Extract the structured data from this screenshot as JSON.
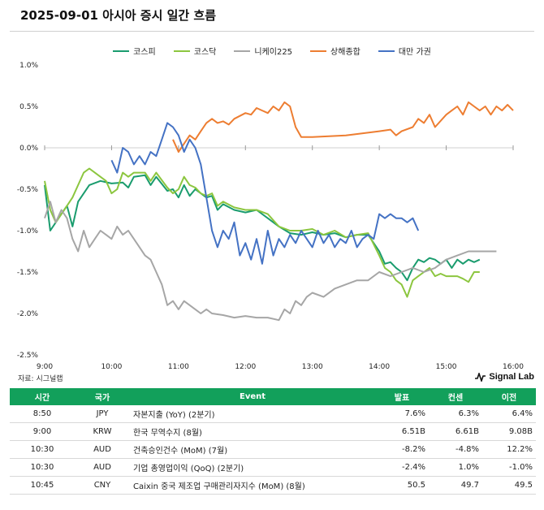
{
  "title": "2025-09-01 아시아 증시 일간 흐름",
  "source": "자료: 시그널랩",
  "brand": "Signal Lab",
  "chart_data": {
    "type": "line",
    "ylim": [
      -2.5,
      1.0
    ],
    "xlim": [
      "9:00",
      "16:00"
    ],
    "yticks": [
      "1.0%",
      "0.5%",
      "0.0%",
      "-0.5%",
      "-1.0%",
      "-1.5%",
      "-2.0%",
      "-2.5%"
    ],
    "ytick_values": [
      1.0,
      0.5,
      0.0,
      -0.5,
      -1.0,
      -1.5,
      -2.0,
      -2.5
    ],
    "xticks": [
      "9:00",
      "10:00",
      "11:00",
      "12:00",
      "13:00",
      "14:00",
      "15:00",
      "16:00"
    ],
    "legend_position": "top",
    "series": [
      {
        "name": "코스피",
        "color": "#1a9c6e",
        "points": [
          [
            "9:00",
            -0.45
          ],
          [
            "9:05",
            -1.0
          ],
          [
            "9:10",
            -0.9
          ],
          [
            "9:15",
            -0.8
          ],
          [
            "9:20",
            -0.7
          ],
          [
            "9:25",
            -0.95
          ],
          [
            "9:30",
            -0.65
          ],
          [
            "9:40",
            -0.45
          ],
          [
            "9:50",
            -0.4
          ],
          [
            "10:00",
            -0.43
          ],
          [
            "10:10",
            -0.42
          ],
          [
            "10:15",
            -0.48
          ],
          [
            "10:20",
            -0.35
          ],
          [
            "10:30",
            -0.33
          ],
          [
            "10:35",
            -0.45
          ],
          [
            "10:40",
            -0.35
          ],
          [
            "10:50",
            -0.52
          ],
          [
            "10:55",
            -0.5
          ],
          [
            "11:00",
            -0.6
          ],
          [
            "11:05",
            -0.45
          ],
          [
            "11:10",
            -0.58
          ],
          [
            "11:15",
            -0.5
          ],
          [
            "11:20",
            -0.55
          ],
          [
            "11:25",
            -0.6
          ],
          [
            "11:30",
            -0.58
          ],
          [
            "11:35",
            -0.75
          ],
          [
            "11:40",
            -0.68
          ],
          [
            "11:50",
            -0.75
          ],
          [
            "12:00",
            -0.78
          ],
          [
            "12:10",
            -0.75
          ],
          [
            "12:20",
            -0.85
          ],
          [
            "12:30",
            -0.95
          ],
          [
            "12:40",
            -1.03
          ],
          [
            "12:50",
            -1.05
          ],
          [
            "13:00",
            -1.02
          ],
          [
            "13:10",
            -1.05
          ],
          [
            "13:20",
            -1.03
          ],
          [
            "13:30",
            -1.08
          ],
          [
            "13:40",
            -1.05
          ],
          [
            "13:50",
            -1.05
          ],
          [
            "14:00",
            -1.25
          ],
          [
            "14:05",
            -1.4
          ],
          [
            "14:10",
            -1.38
          ],
          [
            "14:15",
            -1.45
          ],
          [
            "14:20",
            -1.5
          ],
          [
            "14:25",
            -1.6
          ],
          [
            "14:30",
            -1.45
          ],
          [
            "14:35",
            -1.35
          ],
          [
            "14:40",
            -1.38
          ],
          [
            "14:45",
            -1.33
          ],
          [
            "14:50",
            -1.35
          ],
          [
            "14:55",
            -1.4
          ],
          [
            "15:00",
            -1.35
          ],
          [
            "15:05",
            -1.45
          ],
          [
            "15:10",
            -1.35
          ],
          [
            "15:15",
            -1.4
          ],
          [
            "15:20",
            -1.35
          ],
          [
            "15:25",
            -1.38
          ],
          [
            "15:30",
            -1.35
          ]
        ]
      },
      {
        "name": "코스닥",
        "color": "#8cc63f",
        "points": [
          [
            "9:00",
            -0.4
          ],
          [
            "9:05",
            -0.75
          ],
          [
            "9:10",
            -0.9
          ],
          [
            "9:15",
            -0.8
          ],
          [
            "9:20",
            -0.7
          ],
          [
            "9:25",
            -0.6
          ],
          [
            "9:30",
            -0.45
          ],
          [
            "9:35",
            -0.3
          ],
          [
            "9:40",
            -0.25
          ],
          [
            "9:45",
            -0.3
          ],
          [
            "9:50",
            -0.35
          ],
          [
            "9:55",
            -0.4
          ],
          [
            "10:00",
            -0.55
          ],
          [
            "10:05",
            -0.5
          ],
          [
            "10:10",
            -0.3
          ],
          [
            "10:15",
            -0.35
          ],
          [
            "10:20",
            -0.3
          ],
          [
            "10:30",
            -0.3
          ],
          [
            "10:35",
            -0.4
          ],
          [
            "10:40",
            -0.3
          ],
          [
            "10:50",
            -0.48
          ],
          [
            "10:55",
            -0.55
          ],
          [
            "11:00",
            -0.5
          ],
          [
            "11:05",
            -0.35
          ],
          [
            "11:10",
            -0.45
          ],
          [
            "11:15",
            -0.48
          ],
          [
            "11:20",
            -0.55
          ],
          [
            "11:25",
            -0.58
          ],
          [
            "11:30",
            -0.55
          ],
          [
            "11:35",
            -0.7
          ],
          [
            "11:40",
            -0.65
          ],
          [
            "11:50",
            -0.72
          ],
          [
            "12:00",
            -0.75
          ],
          [
            "12:10",
            -0.75
          ],
          [
            "12:20",
            -0.8
          ],
          [
            "12:30",
            -0.95
          ],
          [
            "12:40",
            -1.0
          ],
          [
            "12:50",
            -1.0
          ],
          [
            "13:00",
            -0.98
          ],
          [
            "13:10",
            -1.05
          ],
          [
            "13:20",
            -1.0
          ],
          [
            "13:30",
            -1.08
          ],
          [
            "13:40",
            -1.05
          ],
          [
            "13:50",
            -1.03
          ],
          [
            "14:00",
            -1.3
          ],
          [
            "14:05",
            -1.45
          ],
          [
            "14:10",
            -1.5
          ],
          [
            "14:15",
            -1.6
          ],
          [
            "14:20",
            -1.65
          ],
          [
            "14:25",
            -1.8
          ],
          [
            "14:30",
            -1.6
          ],
          [
            "14:35",
            -1.55
          ],
          [
            "14:40",
            -1.5
          ],
          [
            "14:45",
            -1.45
          ],
          [
            "14:50",
            -1.55
          ],
          [
            "14:55",
            -1.52
          ],
          [
            "15:00",
            -1.55
          ],
          [
            "15:10",
            -1.55
          ],
          [
            "15:15",
            -1.58
          ],
          [
            "15:20",
            -1.62
          ],
          [
            "15:25",
            -1.5
          ],
          [
            "15:30",
            -1.5
          ]
        ]
      },
      {
        "name": "니케이225",
        "color": "#a6a6a6",
        "points": [
          [
            "9:00",
            -0.85
          ],
          [
            "9:05",
            -0.65
          ],
          [
            "9:10",
            -0.9
          ],
          [
            "9:15",
            -0.75
          ],
          [
            "9:20",
            -0.85
          ],
          [
            "9:25",
            -1.1
          ],
          [
            "9:30",
            -1.25
          ],
          [
            "9:35",
            -1.0
          ],
          [
            "9:40",
            -1.2
          ],
          [
            "9:45",
            -1.1
          ],
          [
            "9:50",
            -1.0
          ],
          [
            "9:55",
            -1.05
          ],
          [
            "10:00",
            -1.1
          ],
          [
            "10:05",
            -0.95
          ],
          [
            "10:10",
            -1.05
          ],
          [
            "10:15",
            -1.0
          ],
          [
            "10:20",
            -1.1
          ],
          [
            "10:25",
            -1.2
          ],
          [
            "10:30",
            -1.3
          ],
          [
            "10:35",
            -1.35
          ],
          [
            "10:40",
            -1.5
          ],
          [
            "10:45",
            -1.65
          ],
          [
            "10:50",
            -1.9
          ],
          [
            "10:55",
            -1.85
          ],
          [
            "11:00",
            -1.95
          ],
          [
            "11:05",
            -1.85
          ],
          [
            "11:10",
            -1.9
          ],
          [
            "11:15",
            -1.95
          ],
          [
            "11:20",
            -2.0
          ],
          [
            "11:25",
            -1.95
          ],
          [
            "11:30",
            -2.0
          ],
          [
            "11:40",
            -2.02
          ],
          [
            "11:50",
            -2.05
          ],
          [
            "12:00",
            -2.03
          ],
          [
            "12:10",
            -2.05
          ],
          [
            "12:20",
            -2.05
          ],
          [
            "12:30",
            -2.08
          ],
          [
            "12:35",
            -1.95
          ],
          [
            "12:40",
            -2.0
          ],
          [
            "12:45",
            -1.85
          ],
          [
            "12:50",
            -1.9
          ],
          [
            "12:55",
            -1.8
          ],
          [
            "13:00",
            -1.75
          ],
          [
            "13:10",
            -1.8
          ],
          [
            "13:20",
            -1.7
          ],
          [
            "13:30",
            -1.65
          ],
          [
            "13:40",
            -1.6
          ],
          [
            "13:50",
            -1.6
          ],
          [
            "14:00",
            -1.5
          ],
          [
            "14:10",
            -1.55
          ],
          [
            "14:20",
            -1.5
          ],
          [
            "14:30",
            -1.45
          ],
          [
            "14:40",
            -1.5
          ],
          [
            "14:50",
            -1.45
          ],
          [
            "15:00",
            -1.35
          ],
          [
            "15:10",
            -1.3
          ],
          [
            "15:20",
            -1.25
          ],
          [
            "15:30",
            -1.25
          ],
          [
            "15:45",
            -1.25
          ]
        ]
      },
      {
        "name": "상해종합",
        "color": "#ed7d31",
        "points": [
          [
            "10:55",
            0.1
          ],
          [
            "11:00",
            -0.05
          ],
          [
            "11:05",
            0.05
          ],
          [
            "11:10",
            0.15
          ],
          [
            "11:15",
            0.1
          ],
          [
            "11:20",
            0.2
          ],
          [
            "11:25",
            0.3
          ],
          [
            "11:30",
            0.35
          ],
          [
            "11:35",
            0.3
          ],
          [
            "11:40",
            0.32
          ],
          [
            "11:45",
            0.28
          ],
          [
            "11:50",
            0.35
          ],
          [
            "12:00",
            0.42
          ],
          [
            "12:05",
            0.4
          ],
          [
            "12:10",
            0.48
          ],
          [
            "12:15",
            0.45
          ],
          [
            "12:20",
            0.42
          ],
          [
            "12:25",
            0.5
          ],
          [
            "12:30",
            0.45
          ],
          [
            "12:35",
            0.55
          ],
          [
            "12:40",
            0.5
          ],
          [
            "12:45",
            0.25
          ],
          [
            "12:50",
            0.13
          ],
          [
            "13:00",
            0.13
          ],
          [
            "13:30",
            0.15
          ],
          [
            "14:00",
            0.2
          ],
          [
            "14:10",
            0.22
          ],
          [
            "14:15",
            0.15
          ],
          [
            "14:20",
            0.2
          ],
          [
            "14:30",
            0.25
          ],
          [
            "14:35",
            0.35
          ],
          [
            "14:40",
            0.3
          ],
          [
            "14:45",
            0.4
          ],
          [
            "14:50",
            0.25
          ],
          [
            "15:00",
            0.4
          ],
          [
            "15:05",
            0.45
          ],
          [
            "15:10",
            0.5
          ],
          [
            "15:15",
            0.4
          ],
          [
            "15:20",
            0.55
          ],
          [
            "15:25",
            0.5
          ],
          [
            "15:30",
            0.45
          ],
          [
            "15:35",
            0.5
          ],
          [
            "15:40",
            0.4
          ],
          [
            "15:45",
            0.5
          ],
          [
            "15:50",
            0.45
          ],
          [
            "15:55",
            0.52
          ],
          [
            "16:00",
            0.45
          ]
        ]
      },
      {
        "name": "대만 가권",
        "color": "#4472c4",
        "points": [
          [
            "10:00",
            -0.15
          ],
          [
            "10:05",
            -0.3
          ],
          [
            "10:10",
            0.0
          ],
          [
            "10:15",
            -0.05
          ],
          [
            "10:20",
            -0.2
          ],
          [
            "10:25",
            -0.1
          ],
          [
            "10:30",
            -0.2
          ],
          [
            "10:35",
            -0.05
          ],
          [
            "10:40",
            -0.1
          ],
          [
            "10:45",
            0.1
          ],
          [
            "10:50",
            0.3
          ],
          [
            "10:55",
            0.25
          ],
          [
            "11:00",
            0.15
          ],
          [
            "11:05",
            -0.05
          ],
          [
            "11:10",
            0.1
          ],
          [
            "11:15",
            0.0
          ],
          [
            "11:20",
            -0.2
          ],
          [
            "11:25",
            -0.6
          ],
          [
            "11:30",
            -1.0
          ],
          [
            "11:35",
            -1.2
          ],
          [
            "11:40",
            -1.0
          ],
          [
            "11:45",
            -1.1
          ],
          [
            "11:50",
            -0.9
          ],
          [
            "11:55",
            -1.3
          ],
          [
            "12:00",
            -1.15
          ],
          [
            "12:05",
            -1.35
          ],
          [
            "12:10",
            -1.1
          ],
          [
            "12:15",
            -1.4
          ],
          [
            "12:20",
            -1.0
          ],
          [
            "12:25",
            -1.3
          ],
          [
            "12:30",
            -1.1
          ],
          [
            "12:35",
            -1.2
          ],
          [
            "12:40",
            -1.05
          ],
          [
            "12:45",
            -1.15
          ],
          [
            "12:50",
            -1.0
          ],
          [
            "12:55",
            -1.1
          ],
          [
            "13:00",
            -1.2
          ],
          [
            "13:05",
            -1.0
          ],
          [
            "13:10",
            -1.15
          ],
          [
            "13:15",
            -1.05
          ],
          [
            "13:20",
            -1.2
          ],
          [
            "13:25",
            -1.1
          ],
          [
            "13:30",
            -1.15
          ],
          [
            "13:35",
            -1.0
          ],
          [
            "13:40",
            -1.2
          ],
          [
            "13:45",
            -1.1
          ],
          [
            "13:50",
            -1.05
          ],
          [
            "13:55",
            -1.1
          ],
          [
            "14:00",
            -0.8
          ],
          [
            "14:05",
            -0.85
          ],
          [
            "14:10",
            -0.8
          ],
          [
            "14:15",
            -0.85
          ],
          [
            "14:20",
            -0.85
          ],
          [
            "14:25",
            -0.9
          ],
          [
            "14:30",
            -0.85
          ],
          [
            "14:35",
            -1.0
          ]
        ]
      }
    ]
  },
  "table": {
    "headers": [
      "시간",
      "국가",
      "Event",
      "발표",
      "컨센",
      "이전"
    ],
    "rows": [
      [
        "8:50",
        "JPY",
        "자본지출 (YoY) (2분기)",
        "7.6%",
        "6.3%",
        "6.4%"
      ],
      [
        "9:00",
        "KRW",
        "한국 무역수지 (8월)",
        "6.51B",
        "6.61B",
        "9.08B"
      ],
      [
        "10:30",
        "AUD",
        "건축승인건수 (MoM) (7월)",
        "-8.2%",
        "-4.8%",
        "12.2%"
      ],
      [
        "10:30",
        "AUD",
        "기업 총영업이익 (QoQ) (2분기)",
        "-2.4%",
        "1.0%",
        "-1.0%"
      ],
      [
        "10:45",
        "CNY",
        "Caixin 중국 제조업 구매관리자지수 (MoM) (8월)",
        "50.5",
        "49.7",
        "49.5"
      ]
    ]
  }
}
